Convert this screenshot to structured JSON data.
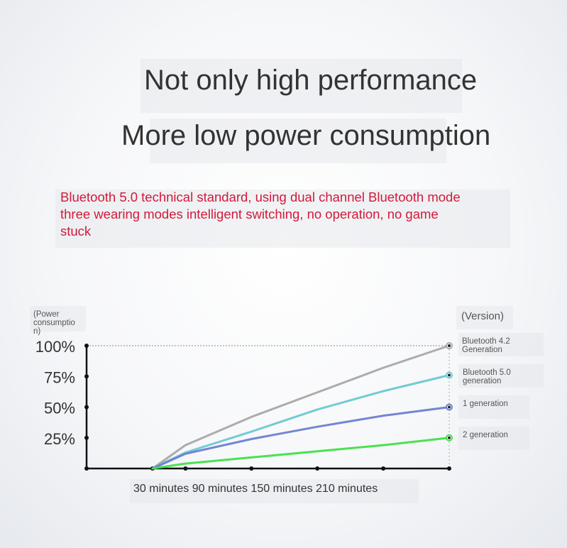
{
  "headline": {
    "line1": "Not only high performance",
    "line2": "More low power consumption"
  },
  "tagline": {
    "line1": "Bluetooth 5.0 technical standard, using dual channel Bluetooth mode",
    "line2": "three wearing modes intelligent switching, no operation, no game",
    "line3": "stuck"
  },
  "chart_data": {
    "type": "line",
    "ylabel": "(Power consumption)",
    "ylabel_lines": [
      "(Power",
      "consumptio",
      "n)"
    ],
    "legend_title": "(Version)",
    "y_ticks": [
      "100%",
      "75%",
      "50%",
      "25%"
    ],
    "y_tick_values": [
      100,
      75,
      50,
      25
    ],
    "ylim": [
      0,
      100
    ],
    "x_label_text": "30 minutes 90 minutes 150 minutes 210 minutes",
    "categories": [
      "30 minutes",
      "90 minutes",
      "150 minutes",
      "210 minutes"
    ],
    "grid": false,
    "x": [
      0,
      30,
      90,
      150,
      210,
      270
    ],
    "xlim": [
      -60,
      270
    ],
    "series": [
      {
        "name": "Bluetooth 4.2 Generation",
        "label_lines": [
          "Bluetooth 4.2",
          "Generation"
        ],
        "color": "#a8a8a8",
        "values": [
          0,
          19,
          42,
          62,
          82,
          100
        ]
      },
      {
        "name": "Bluetooth 5.0 generation",
        "label_lines": [
          "Bluetooth 5.0",
          "generation"
        ],
        "color": "#6cc8d2",
        "values": [
          0,
          13,
          30,
          48,
          63,
          76
        ]
      },
      {
        "name": "1 generation",
        "label_lines": [
          "1 generation"
        ],
        "color": "#6b7fcf",
        "values": [
          0,
          12,
          24,
          34,
          43,
          50
        ]
      },
      {
        "name": "2 generation",
        "label_lines": [
          "2 generation"
        ],
        "color": "#3fe048",
        "values": [
          0,
          4,
          9,
          14,
          19,
          25
        ]
      }
    ]
  }
}
